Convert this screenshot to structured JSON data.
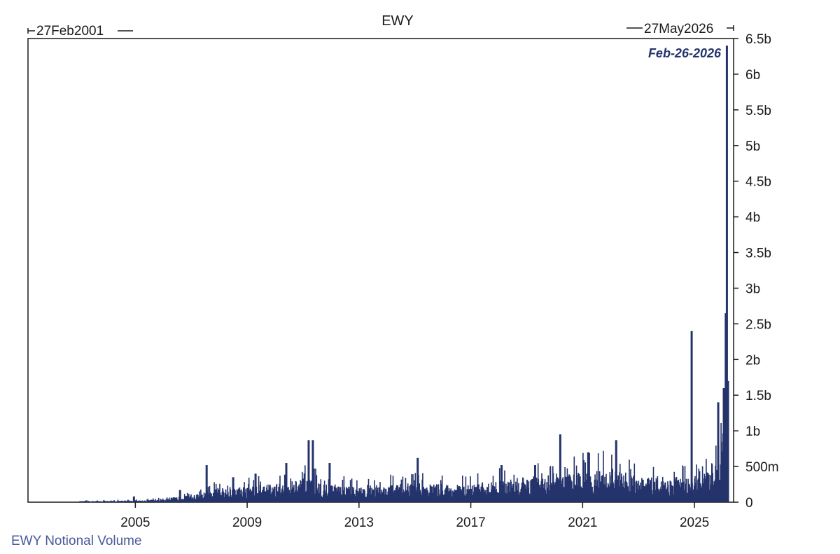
{
  "chart_data": {
    "type": "bar",
    "title": "EWY",
    "series_label": "EWY Notional Volume",
    "start_label": "27Feb2001",
    "end_label": "27May2026",
    "annotation": "Feb-26-2026",
    "series_color": "#24336b",
    "caption_color": "#4a5a9a",
    "x_range": [
      2001.16,
      2026.4
    ],
    "x_ticks": [
      {
        "value": 2005,
        "label": "2005"
      },
      {
        "value": 2009,
        "label": "2009"
      },
      {
        "value": 2013,
        "label": "2013"
      },
      {
        "value": 2017,
        "label": "2017"
      },
      {
        "value": 2021,
        "label": "2021"
      },
      {
        "value": 2025,
        "label": "2025"
      }
    ],
    "ylim": [
      0,
      6.5
    ],
    "y_ticks": [
      {
        "value": 0,
        "label": "0"
      },
      {
        "value": 0.5,
        "label": "500m"
      },
      {
        "value": 1,
        "label": "1b"
      },
      {
        "value": 1.5,
        "label": "1.5b"
      },
      {
        "value": 2,
        "label": "2b"
      },
      {
        "value": 2.5,
        "label": "2.5b"
      },
      {
        "value": 3,
        "label": "3b"
      },
      {
        "value": 3.5,
        "label": "3.5b"
      },
      {
        "value": 4,
        "label": "4b"
      },
      {
        "value": 4.5,
        "label": "4.5b"
      },
      {
        "value": 5,
        "label": "5b"
      },
      {
        "value": 5.5,
        "label": "5.5b"
      },
      {
        "value": 6,
        "label": "6b"
      },
      {
        "value": 6.5,
        "label": "6.5b"
      }
    ],
    "data_start_year": 2003.0,
    "baseline_points": [
      {
        "x": 2003.0,
        "y": 0.01
      },
      {
        "x": 2004.5,
        "y": 0.015
      },
      {
        "x": 2005.5,
        "y": 0.02
      },
      {
        "x": 2006.5,
        "y": 0.05
      },
      {
        "x": 2007.5,
        "y": 0.08
      },
      {
        "x": 2008.0,
        "y": 0.14
      },
      {
        "x": 2009.0,
        "y": 0.15
      },
      {
        "x": 2010.0,
        "y": 0.17
      },
      {
        "x": 2011.0,
        "y": 0.22
      },
      {
        "x": 2012.0,
        "y": 0.17
      },
      {
        "x": 2013.0,
        "y": 0.14
      },
      {
        "x": 2014.0,
        "y": 0.16
      },
      {
        "x": 2015.0,
        "y": 0.18
      },
      {
        "x": 2016.0,
        "y": 0.17
      },
      {
        "x": 2017.0,
        "y": 0.16
      },
      {
        "x": 2018.0,
        "y": 0.2
      },
      {
        "x": 2019.0,
        "y": 0.24
      },
      {
        "x": 2020.0,
        "y": 0.24
      },
      {
        "x": 2021.0,
        "y": 0.3
      },
      {
        "x": 2022.0,
        "y": 0.3
      },
      {
        "x": 2023.0,
        "y": 0.24
      },
      {
        "x": 2024.0,
        "y": 0.22
      },
      {
        "x": 2025.0,
        "y": 0.22
      },
      {
        "x": 2025.5,
        "y": 0.3
      },
      {
        "x": 2025.8,
        "y": 0.5
      },
      {
        "x": 2026.0,
        "y": 0.85
      },
      {
        "x": 2026.2,
        "y": 1.1
      }
    ],
    "spikes": [
      {
        "x": 2004.95,
        "y": 0.08
      },
      {
        "x": 2006.6,
        "y": 0.17
      },
      {
        "x": 2007.55,
        "y": 0.52
      },
      {
        "x": 2008.5,
        "y": 0.35
      },
      {
        "x": 2009.3,
        "y": 0.4
      },
      {
        "x": 2010.4,
        "y": 0.55
      },
      {
        "x": 2011.2,
        "y": 0.87
      },
      {
        "x": 2011.35,
        "y": 0.87
      },
      {
        "x": 2011.95,
        "y": 0.55
      },
      {
        "x": 2015.1,
        "y": 0.62
      },
      {
        "x": 2018.1,
        "y": 0.52
      },
      {
        "x": 2019.3,
        "y": 0.52
      },
      {
        "x": 2020.2,
        "y": 0.95
      },
      {
        "x": 2021.2,
        "y": 0.7
      },
      {
        "x": 2022.2,
        "y": 0.87
      },
      {
        "x": 2024.9,
        "y": 2.4
      },
      {
        "x": 2025.85,
        "y": 1.4
      },
      {
        "x": 2026.05,
        "y": 1.6
      },
      {
        "x": 2026.12,
        "y": 2.65
      },
      {
        "x": 2026.16,
        "y": 6.4
      },
      {
        "x": 2026.2,
        "y": 1.7
      }
    ]
  }
}
